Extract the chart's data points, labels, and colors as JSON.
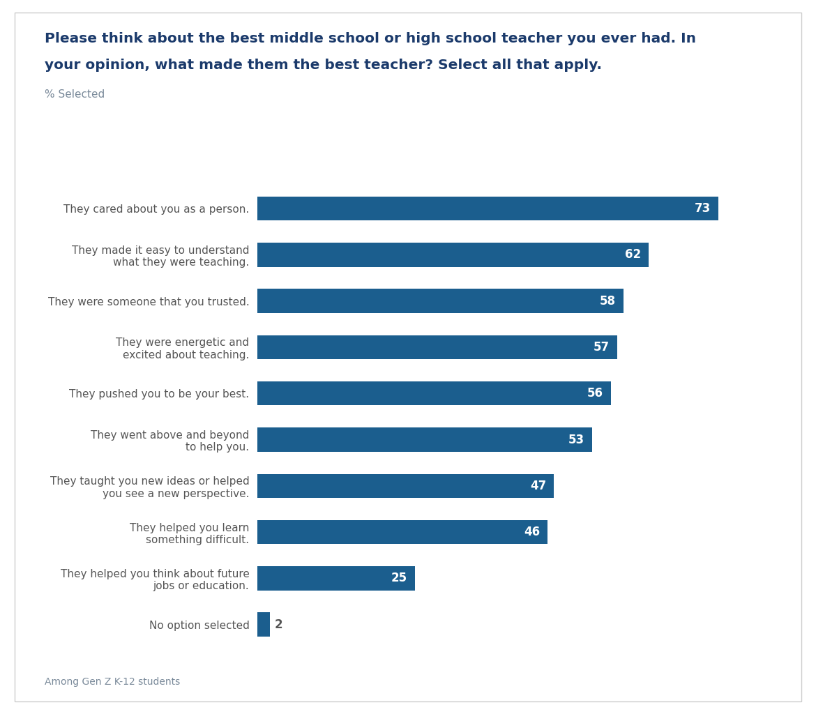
{
  "title_line1": "Please think about the best middle school or high school teacher you ever had. In",
  "title_line2": "your opinion, what made them the best teacher? Select all that apply.",
  "subtitle": "% Selected",
  "footnote": "Among Gen Z K-12 students",
  "categories": [
    "They cared about you as a person.",
    "They made it easy to understand\nwhat they were teaching.",
    "They were someone that you trusted.",
    "They were energetic and\nexcited about teaching.",
    "They pushed you to be your best.",
    "They went above and beyond\nto help you.",
    "They taught you new ideas or helped\nyou see a new perspective.",
    "They helped you learn\nsomething difficult.",
    "They helped you think about future\njobs or education.",
    "No option selected"
  ],
  "values": [
    73,
    62,
    58,
    57,
    56,
    53,
    47,
    46,
    25,
    2
  ],
  "bar_color": "#1B5E8E",
  "value_color": "#ffffff",
  "title_color": "#1B3A6B",
  "subtitle_color": "#7a8a9a",
  "footnote_color": "#7a8a9a",
  "label_color": "#555555",
  "background_color": "#ffffff",
  "border_color": "#cccccc",
  "title_fontsize": 14.5,
  "subtitle_fontsize": 11,
  "label_fontsize": 11,
  "value_fontsize": 12,
  "footnote_fontsize": 10,
  "xlim": [
    0,
    82
  ],
  "bar_height": 0.52
}
